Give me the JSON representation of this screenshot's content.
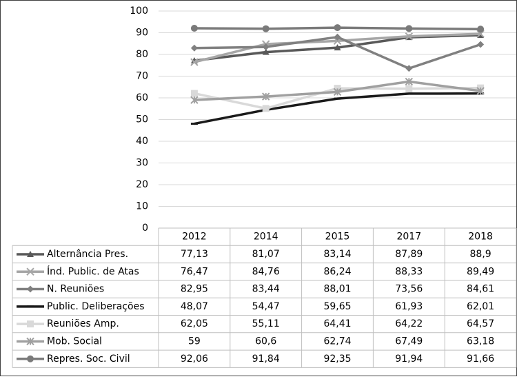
{
  "chart_data": {
    "type": "line",
    "categories": [
      "2012",
      "2014",
      "2015",
      "2017",
      "2018"
    ],
    "ylim": [
      0,
      100
    ],
    "yticks": [
      0,
      10,
      20,
      30,
      40,
      50,
      60,
      70,
      80,
      90,
      100
    ],
    "grid": true,
    "series": [
      {
        "name": "Alternância Pres.",
        "color": "#595959",
        "marker": "triangle",
        "values": [
          77.13,
          81.07,
          83.14,
          87.89,
          88.9
        ],
        "value_labels": [
          "77,13",
          "81,07",
          "83,14",
          "87,89",
          "88,9"
        ]
      },
      {
        "name": "Índ. Public. de Atas",
        "color": "#a6a6a6",
        "marker": "x",
        "values": [
          76.47,
          84.76,
          86.24,
          88.33,
          89.49
        ],
        "value_labels": [
          "76,47",
          "84,76",
          "86,24",
          "88,33",
          "89,49"
        ]
      },
      {
        "name": "N. Reuniões",
        "color": "#808080",
        "marker": "diamond",
        "values": [
          82.95,
          83.44,
          88.01,
          73.56,
          84.61
        ],
        "value_labels": [
          "82,95",
          "83,44",
          "88,01",
          "73,56",
          "84,61"
        ]
      },
      {
        "name": "Public. Deliberações",
        "color": "#1a1a1a",
        "marker": "dash",
        "values": [
          48.07,
          54.47,
          59.65,
          61.93,
          62.01
        ],
        "value_labels": [
          "48,07",
          "54,47",
          "59,65",
          "61,93",
          "62,01"
        ]
      },
      {
        "name": "Reuniões Amp.",
        "color": "#d9d9d9",
        "marker": "square",
        "values": [
          62.05,
          55.11,
          64.41,
          64.22,
          64.57
        ],
        "value_labels": [
          "62,05",
          "55,11",
          "64,41",
          "64,22",
          "64,57"
        ]
      },
      {
        "name": "Mob. Social",
        "color": "#a0a0a0",
        "marker": "star",
        "values": [
          59,
          60.6,
          62.74,
          67.49,
          63.18
        ],
        "value_labels": [
          "59",
          "60,6",
          "62,74",
          "67,49",
          "63,18"
        ]
      },
      {
        "name": "Repres. Soc. Civil",
        "color": "#7a7a7a",
        "marker": "circle",
        "values": [
          92.06,
          91.84,
          92.35,
          91.94,
          91.66
        ],
        "value_labels": [
          "92,06",
          "91,84",
          "92,35",
          "91,94",
          "91,66"
        ]
      }
    ]
  }
}
